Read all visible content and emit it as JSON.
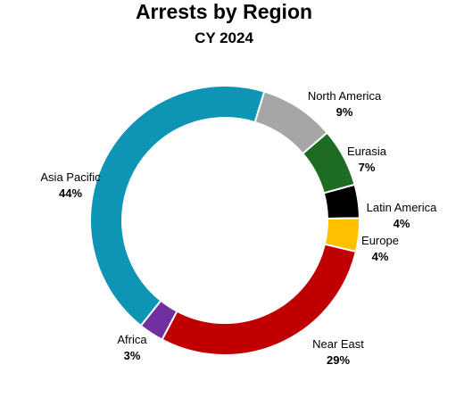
{
  "chart_data": {
    "type": "donut",
    "title": "Arrests by Region",
    "subtitle": "CY 2024",
    "unit": "%",
    "slices": [
      {
        "label": "North America",
        "value": 9,
        "color": "#a6a6a6"
      },
      {
        "label": "Eurasia",
        "value": 7,
        "color": "#1e6b23"
      },
      {
        "label": "Latin America",
        "value": 4,
        "color": "#000000"
      },
      {
        "label": "Europe",
        "value": 4,
        "color": "#ffc000"
      },
      {
        "label": "Near East",
        "value": 29,
        "color": "#c00000"
      },
      {
        "label": "Africa",
        "value": 3,
        "color": "#7030a0"
      },
      {
        "label": "Asia Pacific",
        "value": 44,
        "color": "#0e94b5"
      }
    ],
    "start_angle_deg": 17,
    "direction": "clockwise"
  }
}
